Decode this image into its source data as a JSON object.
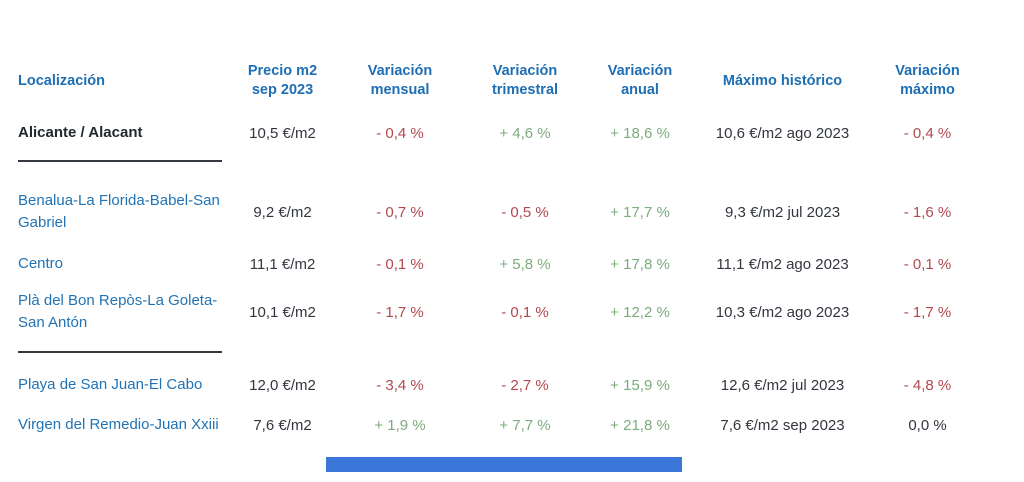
{
  "colors": {
    "header_blue": "#1e6eb4",
    "location_link_blue": "#2173b4",
    "positive_green": "#7cab7d",
    "negative_red": "#b2494f",
    "text_dark": "#32363e",
    "divider_dark": "#343a40",
    "scrollbar_blue": "#3b77d8"
  },
  "table": {
    "columns": [
      "Localización",
      "Precio m2\nsep 2023",
      "Variación\nmensual",
      "Variación\ntrimestral",
      "Variación\nanual",
      "Máximo histórico",
      "Variación\nmáximo"
    ],
    "rows": [
      {
        "location": "Alicante / Alacant",
        "price": "10,5 €/m2",
        "monthly": "- 0,4 %",
        "quarterly": "+ 4,6 %",
        "annual": "+ 18,6 %",
        "max": "10,6 €/m2 ago 2023",
        "max_variation": "- 0,4 %"
      },
      {
        "location": "Benalua-La Florida-Babel-San Gabriel",
        "price": "9,2 €/m2",
        "monthly": "- 0,7 %",
        "quarterly": "- 0,5 %",
        "annual": "+ 17,7 %",
        "max": "9,3 €/m2 jul 2023",
        "max_variation": "- 1,6 %"
      },
      {
        "location": "Centro",
        "price": "11,1 €/m2",
        "monthly": "- 0,1 %",
        "quarterly": "+ 5,8 %",
        "annual": "+ 17,8 %",
        "max": "11,1 €/m2 ago 2023",
        "max_variation": "- 0,1 %"
      },
      {
        "location": "Plà del Bon Repòs-La Goleta-San Antón",
        "price": "10,1 €/m2",
        "monthly": "- 1,7 %",
        "quarterly": "- 0,1 %",
        "annual": "+ 12,2 %",
        "max": "10,3 €/m2 ago 2023",
        "max_variation": "- 1,7 %"
      },
      {
        "location": "Playa de San Juan-El Cabo",
        "price": "12,0 €/m2",
        "monthly": "- 3,4 %",
        "quarterly": "- 2,7 %",
        "annual": "+ 15,9 %",
        "max": "12,6 €/m2 jul 2023",
        "max_variation": "- 4,8 %"
      },
      {
        "location": "Virgen del Remedio-Juan Xxiii",
        "price": "7,6 €/m2",
        "monthly": "+ 1,9 %",
        "quarterly": "+ 7,7 %",
        "annual": "+ 21,8 %",
        "max": "7,6 €/m2 sep 2023",
        "max_variation": "0,0 %"
      }
    ]
  }
}
